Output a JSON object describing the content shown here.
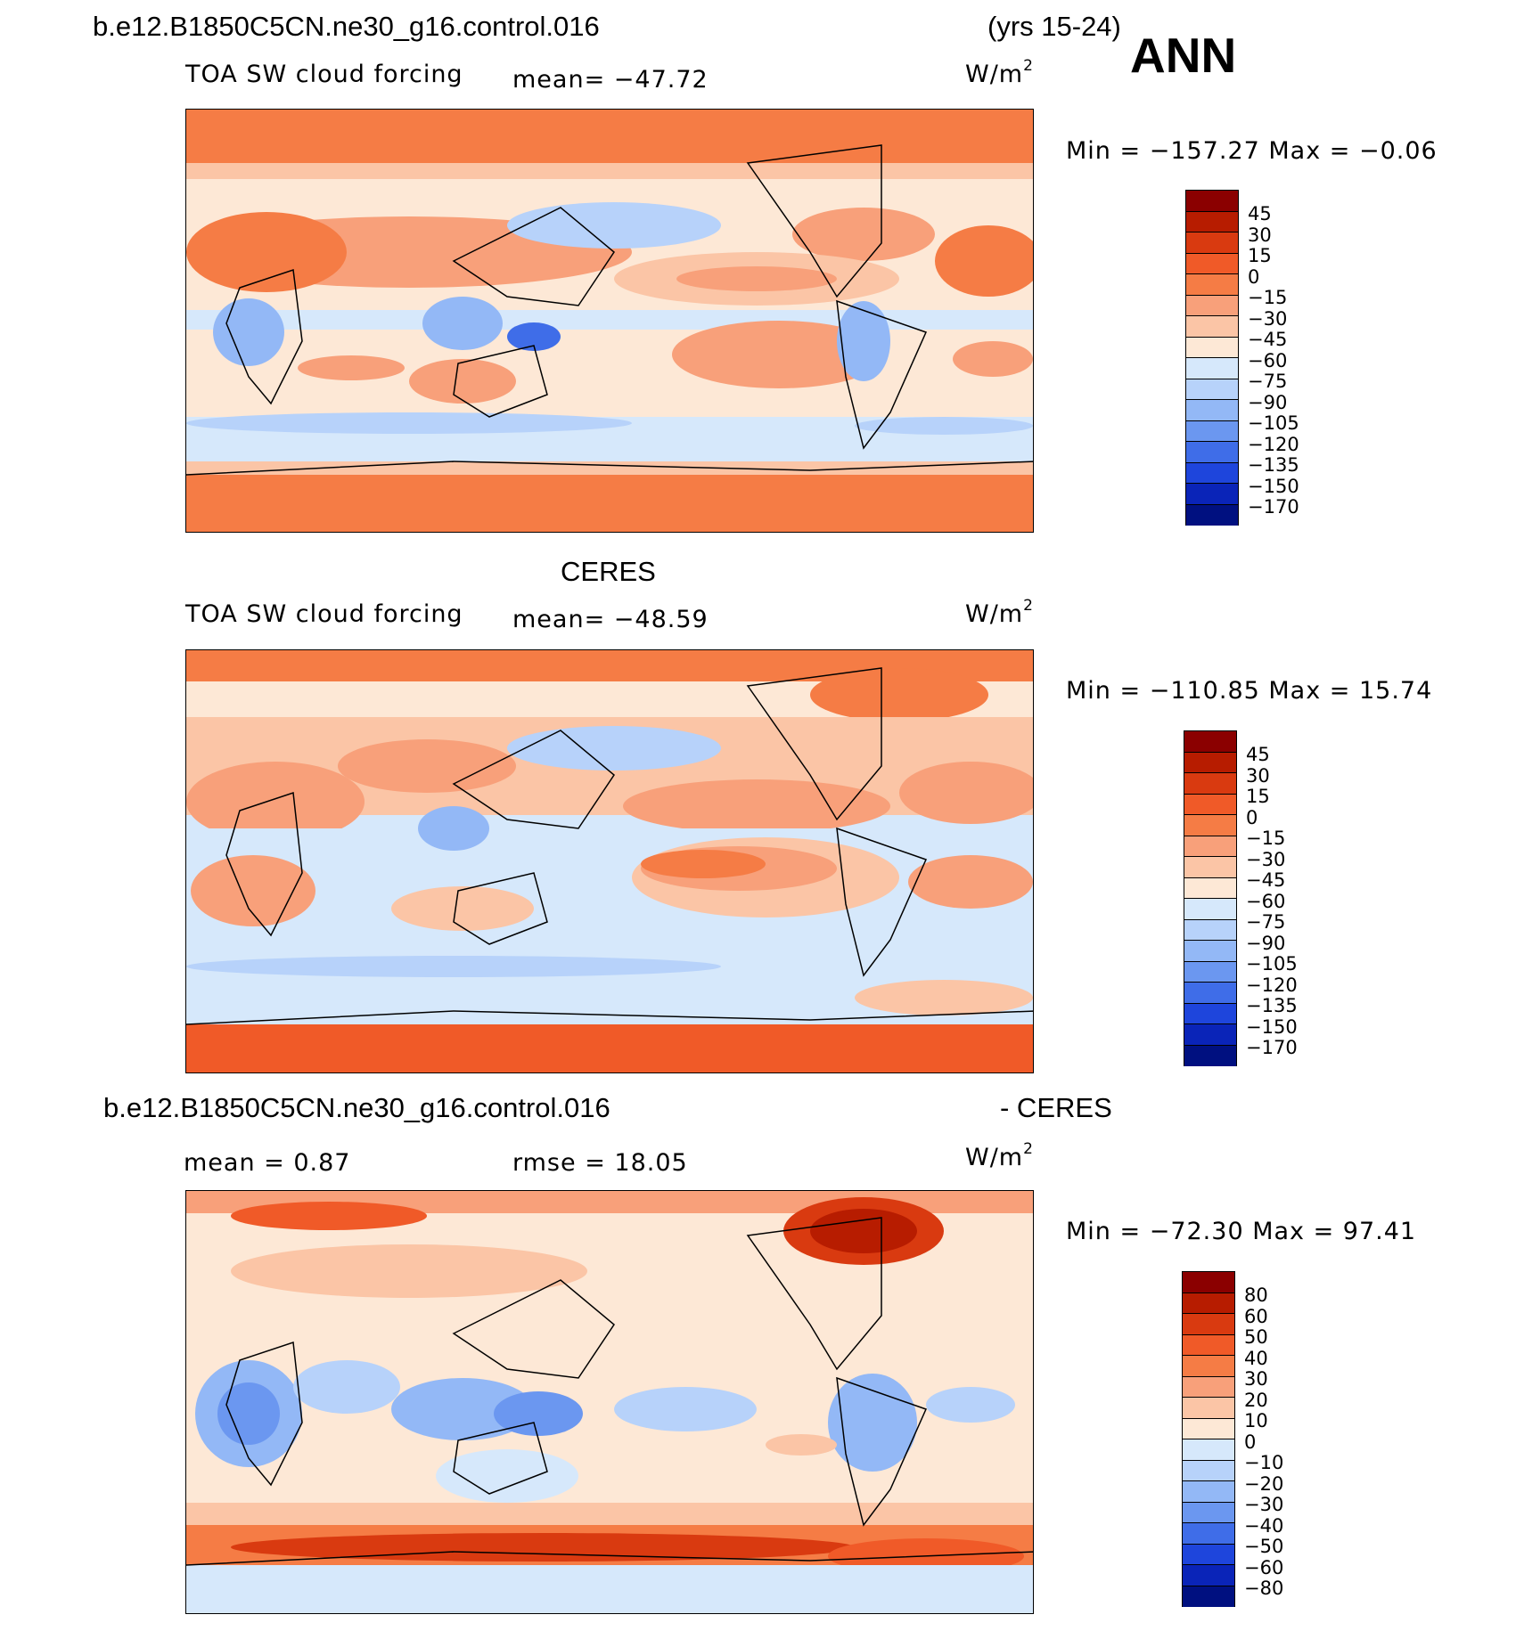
{
  "figure": {
    "title_left": "b.e12.B1850C5CN.ne30_g16.control.016",
    "title_right": "(yrs 15-24)",
    "season": "ANN"
  },
  "panels": [
    {
      "header": "",
      "variable": "TOA SW cloud forcing",
      "mean_label": "mean= −47.72",
      "rmse_label": "",
      "units": "W/m",
      "units_sup": "2",
      "stats": "Min  =  −157.27  Max  =    −0.06",
      "palette": "abs",
      "ticks": [
        "45",
        "30",
        "15",
        "0",
        "−15",
        "−30",
        "−45",
        "−60",
        "−75",
        "−90",
        "−105",
        "−120",
        "−135",
        "−150",
        "−170"
      ]
    },
    {
      "header": "CERES",
      "variable": "TOA SW cloud forcing",
      "mean_label": "mean= −48.59",
      "rmse_label": "",
      "units": "W/m",
      "units_sup": "2",
      "stats": "Min  =  −110.85  Max  =    15.74",
      "palette": "abs",
      "ticks": [
        "45",
        "30",
        "15",
        "0",
        "−15",
        "−30",
        "−45",
        "−60",
        "−75",
        "−90",
        "−105",
        "−120",
        "−135",
        "−150",
        "−170"
      ]
    },
    {
      "header": "b.e12.B1850C5CN.ne30_g16.control.016",
      "header_right": "- CERES",
      "variable": "",
      "mean_label": "mean  =     0.87",
      "rmse_label": "rmse  =    18.05",
      "units": "W/m",
      "units_sup": "2",
      "stats": "Min  =  −72.30  Max  =   97.41",
      "palette": "diff",
      "ticks": [
        "80",
        "60",
        "50",
        "40",
        "30",
        "20",
        "10",
        "0",
        "−10",
        "−20",
        "−30",
        "−40",
        "−50",
        "−60",
        "−80"
      ]
    }
  ],
  "colors": {
    "abs": [
      "#8b0000",
      "#b71c00",
      "#d93a10",
      "#f05a28",
      "#f57c45",
      "#f8a07a",
      "#fbc5a6",
      "#fde8d6",
      "#d6e8fb",
      "#b7d2fa",
      "#93b8f6",
      "#6b97f0",
      "#3f6de8",
      "#1e45dc",
      "#0a24b8",
      "#001080"
    ],
    "diff": [
      "#8b0000",
      "#b71c00",
      "#d93a10",
      "#f05a28",
      "#f57c45",
      "#f8a07a",
      "#fbc5a6",
      "#fde8d6",
      "#d6e8fb",
      "#b7d2fa",
      "#93b8f6",
      "#6b97f0",
      "#3f6de8",
      "#1e45dc",
      "#0a24b8",
      "#001080"
    ]
  }
}
